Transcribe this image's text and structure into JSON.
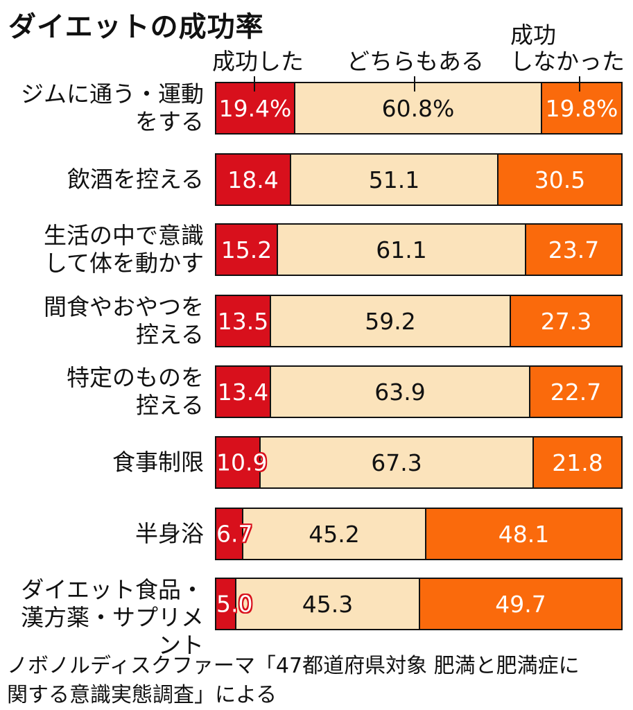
{
  "chart_data": {
    "type": "bar",
    "stacked": true,
    "orientation": "horizontal",
    "title": "ダイエットの成功率",
    "legend": [
      "成功した",
      "どちらもある",
      "成功\nしなかった"
    ],
    "categories": [
      "ジムに通う・運動\nをする",
      "飲酒を控える",
      "生活の中で意識\nして体を動かす",
      "間食やおやつを\n控える",
      "特定のものを\n控える",
      "食事制限",
      "半身浴",
      "ダイエット食品・\n漢方薬・サプリメント"
    ],
    "series": [
      {
        "name": "成功した",
        "values": [
          19.4,
          18.4,
          15.2,
          13.5,
          13.4,
          10.9,
          6.7,
          5.0
        ]
      },
      {
        "name": "どちらもある",
        "values": [
          60.8,
          51.1,
          61.1,
          59.2,
          63.9,
          67.3,
          45.2,
          45.3
        ]
      },
      {
        "name": "成功\nしなかった",
        "values": [
          19.8,
          30.5,
          23.7,
          27.3,
          22.7,
          21.8,
          48.1,
          49.7
        ]
      }
    ],
    "value_labels": [
      [
        "19.4%",
        "60.8%",
        "19.8%"
      ],
      [
        "18.4",
        "51.1",
        "30.5"
      ],
      [
        "15.2",
        "61.1",
        "23.7"
      ],
      [
        "13.5",
        "59.2",
        "27.3"
      ],
      [
        "13.4",
        "63.9",
        "22.7"
      ],
      [
        "10.9",
        "67.3",
        "21.8"
      ],
      [
        "6.7",
        "45.2",
        "48.1"
      ],
      [
        "5.0",
        "45.3",
        "49.7"
      ]
    ],
    "colors": {
      "success": "#d8101c",
      "both": "#fbe3bb",
      "fail": "#fa6a0c"
    },
    "xlim": [
      0,
      100
    ],
    "grid": false
  },
  "source": "ノボノルディスクファーマ「47都道府県対象 肥満と肥満症に\n関する意識実態調査」による"
}
